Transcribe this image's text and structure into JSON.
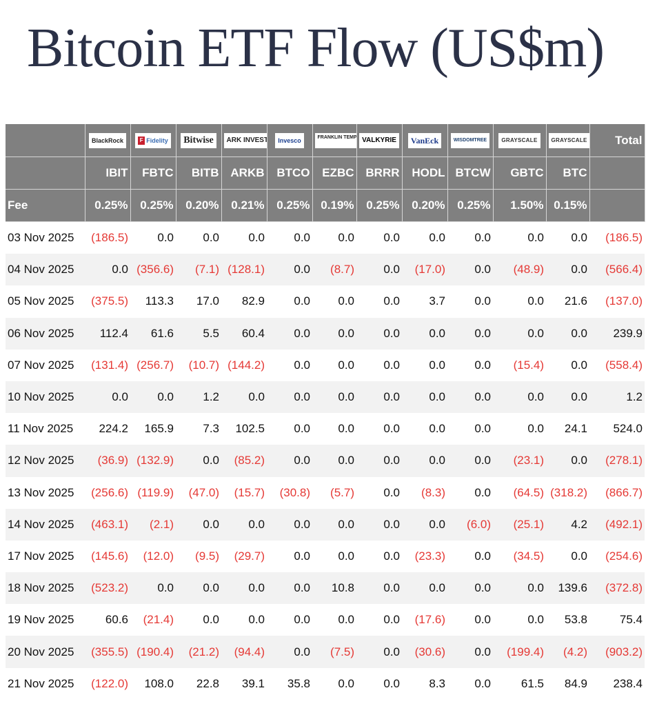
{
  "title": "Bitcoin ETF Flow (US$m)",
  "issuers": [
    "BlackRock",
    "Fidelity",
    "Bitwise",
    "ARK INVEST",
    "Invesco",
    "FRANKLIN TEMPLETON",
    "VALKYRIE",
    "VanEck",
    "WISDOMTREE",
    "GRAYSCALE",
    "GRAYSCALE"
  ],
  "total_header": "Total",
  "tickers": [
    "IBIT",
    "FBTC",
    "BITB",
    "ARKB",
    "BTCO",
    "EZBC",
    "BRRR",
    "HODL",
    "BTCW",
    "GBTC",
    "BTC"
  ],
  "fee_label": "Fee",
  "fees": [
    "0.25%",
    "0.25%",
    "0.20%",
    "0.21%",
    "0.25%",
    "0.19%",
    "0.25%",
    "0.20%",
    "0.25%",
    "1.50%",
    "0.15%"
  ],
  "colors": {
    "header_bg": "#808080",
    "negative": "#e53935",
    "title": "#2b3147",
    "row_alt": "#f2f2f2"
  },
  "rows": [
    {
      "date": "03 Nov 2025",
      "values": [
        "(186.5)",
        "0.0",
        "0.0",
        "0.0",
        "0.0",
        "0.0",
        "0.0",
        "0.0",
        "0.0",
        "0.0",
        "0.0"
      ],
      "total": "(186.5)"
    },
    {
      "date": "04 Nov 2025",
      "values": [
        "0.0",
        "(356.6)",
        "(7.1)",
        "(128.1)",
        "0.0",
        "(8.7)",
        "0.0",
        "(17.0)",
        "0.0",
        "(48.9)",
        "0.0"
      ],
      "total": "(566.4)"
    },
    {
      "date": "05 Nov 2025",
      "values": [
        "(375.5)",
        "113.3",
        "17.0",
        "82.9",
        "0.0",
        "0.0",
        "0.0",
        "3.7",
        "0.0",
        "0.0",
        "21.6"
      ],
      "total": "(137.0)"
    },
    {
      "date": "06 Nov 2025",
      "values": [
        "112.4",
        "61.6",
        "5.5",
        "60.4",
        "0.0",
        "0.0",
        "0.0",
        "0.0",
        "0.0",
        "0.0",
        "0.0"
      ],
      "total": "239.9"
    },
    {
      "date": "07 Nov 2025",
      "values": [
        "(131.4)",
        "(256.7)",
        "(10.7)",
        "(144.2)",
        "0.0",
        "0.0",
        "0.0",
        "0.0",
        "0.0",
        "(15.4)",
        "0.0"
      ],
      "total": "(558.4)"
    },
    {
      "date": "10 Nov 2025",
      "values": [
        "0.0",
        "0.0",
        "1.2",
        "0.0",
        "0.0",
        "0.0",
        "0.0",
        "0.0",
        "0.0",
        "0.0",
        "0.0"
      ],
      "total": "1.2"
    },
    {
      "date": "11 Nov 2025",
      "values": [
        "224.2",
        "165.9",
        "7.3",
        "102.5",
        "0.0",
        "0.0",
        "0.0",
        "0.0",
        "0.0",
        "0.0",
        "24.1"
      ],
      "total": "524.0"
    },
    {
      "date": "12 Nov 2025",
      "values": [
        "(36.9)",
        "(132.9)",
        "0.0",
        "(85.2)",
        "0.0",
        "0.0",
        "0.0",
        "0.0",
        "0.0",
        "(23.1)",
        "0.0"
      ],
      "total": "(278.1)"
    },
    {
      "date": "13 Nov 2025",
      "values": [
        "(256.6)",
        "(119.9)",
        "(47.0)",
        "(15.7)",
        "(30.8)",
        "(5.7)",
        "0.0",
        "(8.3)",
        "0.0",
        "(64.5)",
        "(318.2)"
      ],
      "total": "(866.7)"
    },
    {
      "date": "14 Nov 2025",
      "values": [
        "(463.1)",
        "(2.1)",
        "0.0",
        "0.0",
        "0.0",
        "0.0",
        "0.0",
        "0.0",
        "(6.0)",
        "(25.1)",
        "4.2"
      ],
      "total": "(492.1)"
    },
    {
      "date": "17 Nov 2025",
      "values": [
        "(145.6)",
        "(12.0)",
        "(9.5)",
        "(29.7)",
        "0.0",
        "0.0",
        "0.0",
        "(23.3)",
        "0.0",
        "(34.5)",
        "0.0"
      ],
      "total": "(254.6)"
    },
    {
      "date": "18 Nov 2025",
      "values": [
        "(523.2)",
        "0.0",
        "0.0",
        "0.0",
        "0.0",
        "10.8",
        "0.0",
        "0.0",
        "0.0",
        "0.0",
        "139.6"
      ],
      "total": "(372.8)"
    },
    {
      "date": "19 Nov 2025",
      "values": [
        "60.6",
        "(21.4)",
        "0.0",
        "0.0",
        "0.0",
        "0.0",
        "0.0",
        "(17.6)",
        "0.0",
        "0.0",
        "53.8"
      ],
      "total": "75.4"
    },
    {
      "date": "20 Nov 2025",
      "values": [
        "(355.5)",
        "(190.4)",
        "(21.2)",
        "(94.4)",
        "0.0",
        "(7.5)",
        "0.0",
        "(30.6)",
        "0.0",
        "(199.4)",
        "(4.2)"
      ],
      "total": "(903.2)"
    },
    {
      "date": "21 Nov 2025",
      "values": [
        "(122.0)",
        "108.0",
        "22.8",
        "39.1",
        "35.8",
        "0.0",
        "0.0",
        "8.3",
        "0.0",
        "61.5",
        "84.9"
      ],
      "total": "238.4"
    }
  ]
}
